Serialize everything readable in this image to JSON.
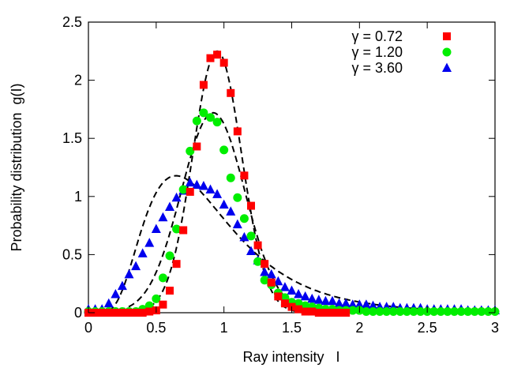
{
  "chart_data": {
    "type": "scatter",
    "title": "",
    "xlabel": "Ray intensity   I",
    "ylabel": "Probability distribution  g(I)",
    "xlim": [
      0,
      3
    ],
    "ylim": [
      0,
      2.5
    ],
    "x_ticks": [
      "0",
      "0.5",
      "1",
      "1.5",
      "2",
      "2.5",
      "3"
    ],
    "y_ticks": [
      "0",
      "0.5",
      "1",
      "1.5",
      "2",
      "2.5"
    ],
    "grid": false,
    "legend_position": "top-right",
    "series": [
      {
        "name": "γ = 0.72",
        "marker": "square",
        "color": "#ff0000",
        "x": [
          0.0,
          0.05,
          0.1,
          0.15,
          0.2,
          0.25,
          0.3,
          0.35,
          0.4,
          0.45,
          0.5,
          0.55,
          0.6,
          0.65,
          0.7,
          0.75,
          0.8,
          0.85,
          0.9,
          0.95,
          1.0,
          1.05,
          1.1,
          1.15,
          1.2,
          1.25,
          1.3,
          1.35,
          1.4,
          1.45,
          1.5,
          1.55,
          1.6,
          1.65,
          1.7,
          1.75,
          1.8,
          1.85,
          1.9
        ],
        "y": [
          0.0,
          0.0,
          0.0,
          0.0,
          0.0,
          0.0,
          0.0,
          0.0,
          0.0,
          0.01,
          0.02,
          0.07,
          0.19,
          0.42,
          0.71,
          1.04,
          1.43,
          1.96,
          2.19,
          2.22,
          2.15,
          1.89,
          1.56,
          1.18,
          0.92,
          0.58,
          0.42,
          0.26,
          0.14,
          0.08,
          0.05,
          0.03,
          0.01,
          0.01,
          0.0,
          0.0,
          0.0,
          0.0,
          0.0
        ]
      },
      {
        "name": "γ = 1.20",
        "marker": "circle",
        "color": "#00ee00",
        "x": [
          0.0,
          0.05,
          0.1,
          0.15,
          0.2,
          0.25,
          0.3,
          0.35,
          0.4,
          0.45,
          0.5,
          0.55,
          0.6,
          0.65,
          0.7,
          0.75,
          0.8,
          0.85,
          0.9,
          0.95,
          1.0,
          1.05,
          1.1,
          1.15,
          1.2,
          1.25,
          1.3,
          1.35,
          1.4,
          1.45,
          1.5,
          1.55,
          1.6,
          1.65,
          1.7,
          1.75,
          1.8,
          1.85,
          1.9,
          1.95,
          2.0,
          2.05,
          2.1,
          2.15,
          2.2,
          2.25,
          2.3,
          2.35,
          2.4,
          2.45,
          2.5,
          2.55,
          2.6,
          2.65,
          2.7,
          2.75,
          2.8,
          2.85,
          2.9,
          2.95,
          3.0
        ],
        "y": [
          0.01,
          0.01,
          0.01,
          0.01,
          0.01,
          0.01,
          0.01,
          0.01,
          0.03,
          0.06,
          0.12,
          0.3,
          0.49,
          0.72,
          1.06,
          1.39,
          1.65,
          1.72,
          1.68,
          1.64,
          1.4,
          1.16,
          0.99,
          0.81,
          0.66,
          0.44,
          0.28,
          0.24,
          0.17,
          0.13,
          0.09,
          0.08,
          0.06,
          0.05,
          0.04,
          0.03,
          0.03,
          0.02,
          0.02,
          0.02,
          0.02,
          0.01,
          0.01,
          0.01,
          0.01,
          0.01,
          0.01,
          0.01,
          0.01,
          0.01,
          0.01,
          0.01,
          0.01,
          0.01,
          0.01,
          0.01,
          0.01,
          0.01,
          0.01,
          0.01,
          0.01
        ]
      },
      {
        "name": "γ = 3.60",
        "marker": "triangle",
        "color": "#0000ee",
        "x": [
          0.0,
          0.05,
          0.1,
          0.15,
          0.2,
          0.25,
          0.3,
          0.35,
          0.4,
          0.45,
          0.5,
          0.55,
          0.6,
          0.65,
          0.7,
          0.75,
          0.8,
          0.85,
          0.9,
          0.95,
          1.0,
          1.05,
          1.1,
          1.15,
          1.2,
          1.25,
          1.3,
          1.35,
          1.4,
          1.45,
          1.5,
          1.55,
          1.6,
          1.65,
          1.7,
          1.75,
          1.8,
          1.85,
          1.9,
          1.95,
          2.0,
          2.05,
          2.1,
          2.15,
          2.2,
          2.25,
          2.3,
          2.35,
          2.4,
          2.45,
          2.5,
          2.55,
          2.6,
          2.65,
          2.7,
          2.75,
          2.8,
          2.85,
          2.9,
          2.95,
          3.0
        ],
        "y": [
          0.03,
          0.03,
          0.03,
          0.08,
          0.16,
          0.23,
          0.33,
          0.4,
          0.51,
          0.6,
          0.72,
          0.82,
          0.91,
          0.99,
          1.05,
          1.12,
          1.1,
          1.09,
          1.06,
          1.02,
          0.93,
          0.87,
          0.76,
          0.65,
          0.53,
          0.45,
          0.35,
          0.33,
          0.27,
          0.22,
          0.19,
          0.16,
          0.14,
          0.12,
          0.11,
          0.1,
          0.1,
          0.08,
          0.08,
          0.07,
          0.07,
          0.07,
          0.06,
          0.05,
          0.05,
          0.05,
          0.04,
          0.04,
          0.04,
          0.04,
          0.03,
          0.03,
          0.03,
          0.03,
          0.03,
          0.03,
          0.02,
          0.02,
          0.02,
          0.02,
          0.02
        ]
      }
    ],
    "fit_curves": [
      {
        "style": "dashed",
        "color": "#000000",
        "type": "gaussian",
        "amplitude": 2.25,
        "mean": 0.95,
        "sigma": 0.18
      },
      {
        "style": "dashed",
        "color": "#000000",
        "type": "gaussian",
        "amplitude": 1.72,
        "mean": 0.92,
        "sigma": 0.235
      },
      {
        "style": "dashed",
        "color": "#000000",
        "type": "lognormal",
        "amplitude": 1.04,
        "mode": 0.83,
        "log_sigma": 0.5
      }
    ]
  }
}
